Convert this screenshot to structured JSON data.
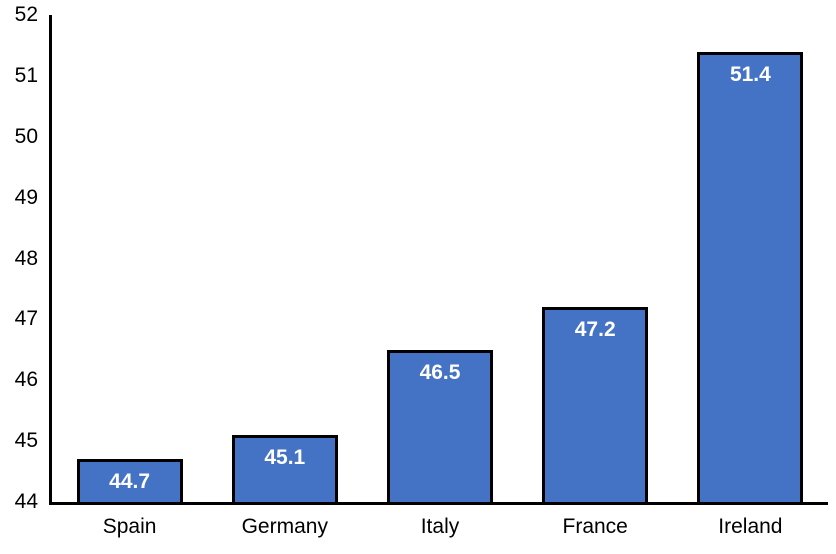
{
  "chart_data": {
    "type": "bar",
    "categories": [
      "Spain",
      "Germany",
      "Italy",
      "France",
      "Ireland"
    ],
    "values": [
      44.7,
      45.1,
      46.5,
      47.2,
      51.4
    ],
    "data_labels": [
      "44.7",
      "45.1",
      "46.5",
      "47.2",
      "51.4"
    ],
    "title": "",
    "xlabel": "",
    "ylabel": "",
    "ylim": [
      44,
      52
    ],
    "ytick_step": 1,
    "ytick_labels": [
      "52",
      "51",
      "50",
      "49",
      "48",
      "47",
      "46",
      "45",
      "44"
    ],
    "grid": false,
    "legend": "none",
    "colors": {
      "bar_fill": "#4472C4",
      "bar_border": "#000000",
      "data_label_text": "#FFFFFF",
      "axis_line": "#000000",
      "tick_text": "#000000",
      "background": "#FFFFFF"
    }
  }
}
